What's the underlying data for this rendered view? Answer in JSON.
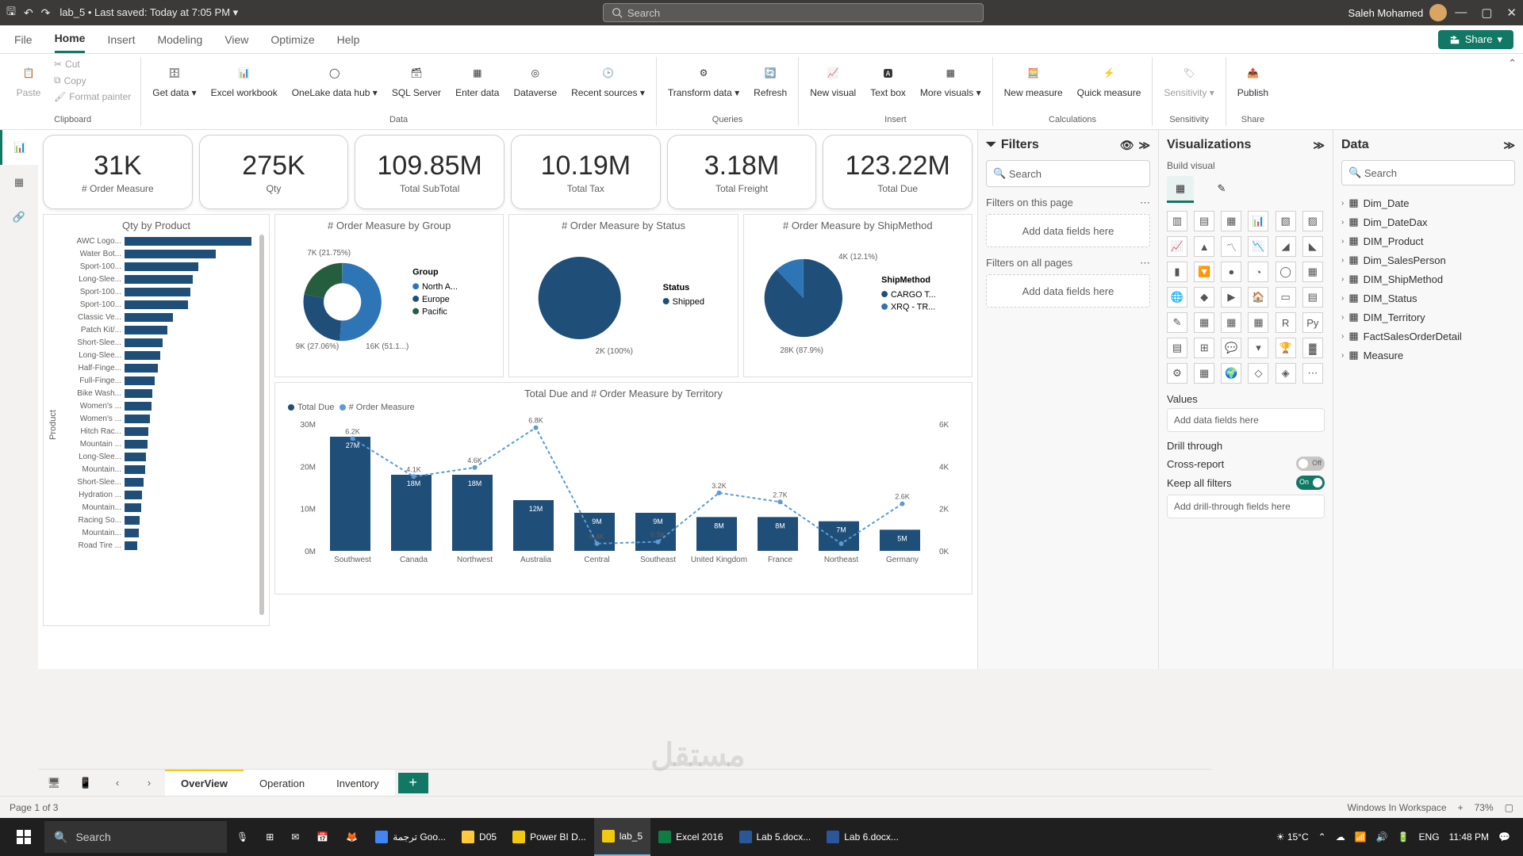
{
  "colors": {
    "accent": "#117865",
    "dark": "#3b3a39",
    "bar": "#1f4e79",
    "bar2": "#5b9bd5",
    "yellow": "#f2c811"
  },
  "titlebar": {
    "doc": "lab_5 • Last saved: Today at 7:05 PM ▾",
    "search_placeholder": "Search",
    "user": "Saleh Mohamed"
  },
  "tabs": [
    "File",
    "Home",
    "Insert",
    "Modeling",
    "View",
    "Optimize",
    "Help"
  ],
  "active_tab": "Home",
  "share": "Share",
  "ribbon_groups": {
    "clipboard": {
      "label": "Clipboard",
      "paste": "Paste",
      "cut": "Cut",
      "copy": "Copy",
      "format_painter": "Format painter"
    },
    "data": {
      "label": "Data",
      "get_data": "Get data ▾",
      "excel": "Excel workbook",
      "onelake": "OneLake data hub ▾",
      "sql": "SQL Server",
      "enter": "Enter data",
      "dataverse": "Dataverse",
      "recent": "Recent sources ▾"
    },
    "queries": {
      "label": "Queries",
      "transform": "Transform data ▾",
      "refresh": "Refresh"
    },
    "insert": {
      "label": "Insert",
      "new_visual": "New visual",
      "text_box": "Text box",
      "more_visuals": "More visuals ▾"
    },
    "calc": {
      "label": "Calculations",
      "new_measure": "New measure",
      "quick_measure": "Quick measure"
    },
    "sens": {
      "label": "Sensitivity",
      "sensitivity": "Sensitivity ▾"
    },
    "share_g": {
      "label": "Share",
      "publish": "Publish"
    }
  },
  "cards": [
    {
      "val": "31K",
      "lbl": "# Order Measure"
    },
    {
      "val": "275K",
      "lbl": "Qty"
    },
    {
      "val": "109.85M",
      "lbl": "Total SubTotal"
    },
    {
      "val": "10.19M",
      "lbl": "Total Tax"
    },
    {
      "val": "3.18M",
      "lbl": "Total Freight"
    },
    {
      "val": "123.22M",
      "lbl": "Total Due"
    }
  ],
  "qty_chart": {
    "title": "Qty by Product",
    "axis_label": "Product",
    "max": 100,
    "items": [
      {
        "label": "AWC Logo...",
        "v": 100
      },
      {
        "label": "Water Bot...",
        "v": 72
      },
      {
        "label": "Sport-100...",
        "v": 58
      },
      {
        "label": "Long-Slee...",
        "v": 54
      },
      {
        "label": "Sport-100...",
        "v": 52
      },
      {
        "label": "Sport-100...",
        "v": 50
      },
      {
        "label": "Classic Ve...",
        "v": 38
      },
      {
        "label": "Patch Kit/...",
        "v": 34
      },
      {
        "label": "Short-Slee...",
        "v": 30
      },
      {
        "label": "Long-Slee...",
        "v": 28
      },
      {
        "label": "Half-Finge...",
        "v": 26
      },
      {
        "label": "Full-Finge...",
        "v": 24
      },
      {
        "label": "Bike Wash...",
        "v": 22
      },
      {
        "label": "Women's ...",
        "v": 21
      },
      {
        "label": "Women's ...",
        "v": 20
      },
      {
        "label": "Hitch Rac...",
        "v": 19
      },
      {
        "label": "Mountain ...",
        "v": 18
      },
      {
        "label": "Long-Slee...",
        "v": 17
      },
      {
        "label": "Mountain...",
        "v": 16
      },
      {
        "label": "Short-Slee...",
        "v": 15
      },
      {
        "label": "Hydration ...",
        "v": 14
      },
      {
        "label": "Mountain...",
        "v": 13
      },
      {
        "label": "Racing So...",
        "v": 12
      },
      {
        "label": "Mountain...",
        "v": 11
      },
      {
        "label": "Road Tire ...",
        "v": 10
      }
    ]
  },
  "donut": {
    "title": "# Order Measure by Group",
    "legend_title": "Group",
    "slices": [
      {
        "label": "North A...",
        "v": 51.1,
        "disp": "16K (51.1...)",
        "color": "#2e75b6"
      },
      {
        "label": "Europe",
        "v": 27.06,
        "disp": "9K (27.06%)",
        "color": "#1f4e79"
      },
      {
        "label": "Pacific",
        "v": 21.75,
        "disp": "7K (21.75%)",
        "color": "#255e3e"
      }
    ]
  },
  "pie_status": {
    "title": "# Order Measure by Status",
    "legend_title": "Status",
    "slices": [
      {
        "label": "Shipped",
        "v": 100,
        "disp": "2K (100%)",
        "color": "#1f4e79"
      }
    ]
  },
  "pie_ship": {
    "title": "# Order Measure by ShipMethod",
    "legend_title": "ShipMethod",
    "slices": [
      {
        "label": "CARGO T...",
        "v": 87.9,
        "disp": "28K (87.9%)",
        "color": "#1f4e79"
      },
      {
        "label": "XRQ - TR...",
        "v": 12.1,
        "disp": "4K (12.1%)",
        "color": "#2e75b6"
      }
    ]
  },
  "combo": {
    "title": "Total Due and # Order Measure by Territory",
    "legend": [
      {
        "label": "Total Due",
        "color": "#1f4e79"
      },
      {
        "label": "# Order Measure",
        "color": "#5b9bd5"
      }
    ],
    "y1_label": "30M",
    "y1_ticks": [
      "30M",
      "20M",
      "10M",
      "0M"
    ],
    "y2_ticks": [
      "6K",
      "4K",
      "2K",
      "0K"
    ],
    "categories": [
      "Southwest",
      "Canada",
      "Northwest",
      "Australia",
      "Central",
      "Southeast",
      "United Kingdom",
      "France",
      "Northeast",
      "Germany"
    ],
    "bars": [
      27,
      18,
      18,
      12,
      9,
      9,
      8,
      8,
      7,
      5
    ],
    "bar_labels": [
      "27M",
      "18M",
      "18M",
      "12M",
      "9M",
      "9M",
      "8M",
      "8M",
      "7M",
      "5M"
    ],
    "line": [
      6.2,
      4.1,
      4.6,
      6.8,
      0.4,
      0.5,
      3.2,
      2.7,
      0.4,
      2.6
    ],
    "line_labels": [
      "6.2K",
      "4.1K",
      "4.6K",
      "",
      "0.4K",
      "0.5K",
      "3.2K",
      "2.7K",
      "",
      "2.6K"
    ],
    "extra_labels": {
      "3": "6.8K"
    }
  },
  "filters": {
    "title": "Filters",
    "search": "Search",
    "on_page": "Filters on this page",
    "on_all": "Filters on all pages",
    "drop": "Add data fields here"
  },
  "viz": {
    "title": "Visualizations",
    "sub": "Build visual",
    "values": "Values",
    "add_fields": "Add data fields here",
    "drill": "Drill through",
    "cross": "Cross-report",
    "keep": "Keep all filters",
    "add_drill": "Add drill-through fields here"
  },
  "datapane": {
    "title": "Data",
    "search": "Search",
    "fields": [
      "Dim_Date",
      "Dim_DateDax",
      "DIM_Product",
      "Dim_SalesPerson",
      "DIM_ShipMethod",
      "DIM_Status",
      "DIM_Territory",
      "FactSalesOrderDetail",
      "Measure"
    ]
  },
  "pages": {
    "tabs": [
      "OverView",
      "Operation",
      "Inventory"
    ],
    "active": "OverView"
  },
  "status": {
    "page": "Page 1 of 3",
    "workspace": "Windows In Workspace",
    "zoom": "73%"
  },
  "taskbar": {
    "search": "Search",
    "apps": [
      {
        "name": "ترجمة Goo...",
        "color": "#4285f4"
      },
      {
        "name": "D05",
        "color": "#ffc83d"
      },
      {
        "name": "Power BI D...",
        "color": "#f2c811"
      },
      {
        "name": "lab_5",
        "color": "#f2c811"
      },
      {
        "name": "Excel 2016",
        "color": "#107c41"
      },
      {
        "name": "Lab 5.docx...",
        "color": "#2b579a"
      },
      {
        "name": "Lab 6.docx...",
        "color": "#2b579a"
      }
    ],
    "weather": "15°C",
    "lang": "ENG",
    "time": "11:48 PM"
  }
}
